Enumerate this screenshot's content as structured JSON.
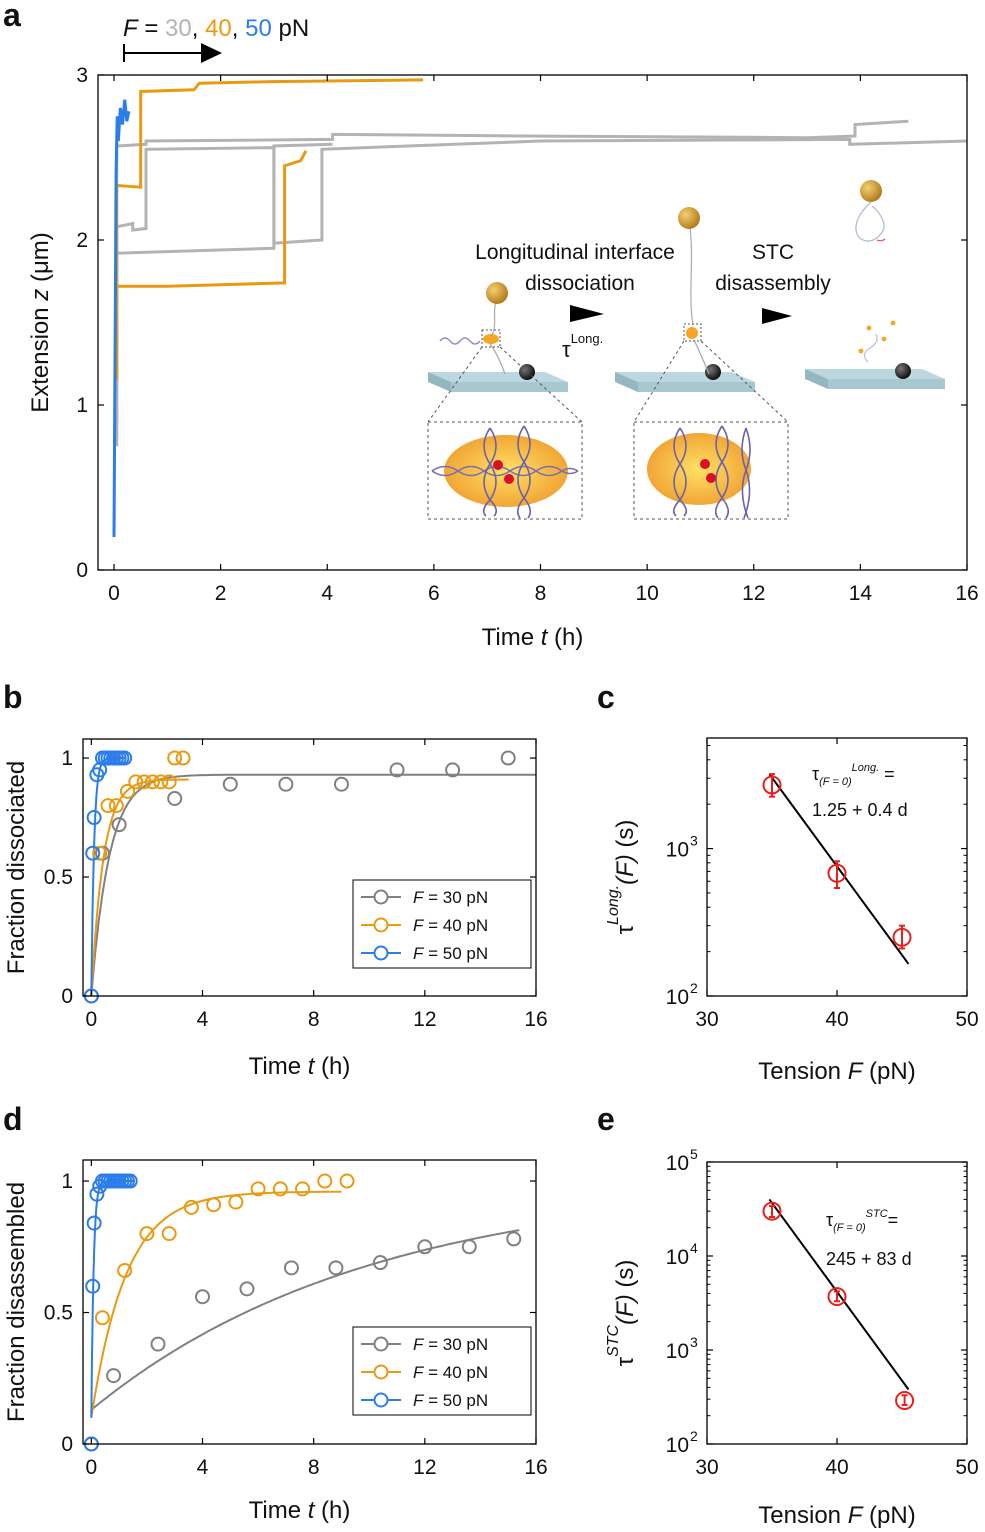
{
  "figure": {
    "panel_labels": [
      "a",
      "b",
      "c",
      "d",
      "e"
    ],
    "colors": {
      "f30": "#b3b3b3",
      "f40": "#e89a10",
      "f50": "#2b7de9",
      "fit30": "#808080",
      "marker": "#e8201c",
      "line": "#000000"
    }
  },
  "panel_a": {
    "force_label": {
      "F": "F",
      "eq": " = ",
      "v30": "30",
      "sep1": ", ",
      "v40": "40",
      "sep2": ", ",
      "v50": "50",
      "unit": " pN"
    },
    "inset": {
      "step1_label_line1": "Longitudinal interface",
      "step1_label_line2": "dissociation",
      "tau_symbol": "τ",
      "tau_sup": "Long.",
      "step2_label_line1": "STC",
      "step2_label_line2": "disassembly"
    }
  },
  "panel_c": {
    "annotation": {
      "tau": "τ",
      "sub": "(F = 0)",
      "sup": "Long.",
      "eq": " =",
      "value": "1.25 + 0.4 d"
    }
  },
  "panel_e": {
    "annotation": {
      "tau": "τ",
      "sub": "(F = 0)",
      "sup": "STC",
      "eq": "=",
      "value": "245 + 83 d"
    }
  },
  "chart_data": [
    {
      "id": "a",
      "type": "line",
      "title": "",
      "xlabel": "Time t (h)",
      "ylabel": "Extension z (μm)",
      "xlim": [
        -0.3,
        16
      ],
      "ylim": [
        0,
        3
      ],
      "xticks": [
        0,
        2,
        4,
        6,
        8,
        10,
        12,
        14,
        16
      ],
      "yticks": [
        0,
        1,
        2,
        3
      ],
      "series": [
        {
          "name": "F = 30 pN trace 1",
          "color": "f30",
          "x": [
            0.05,
            0.05,
            0.6,
            0.6,
            4.1,
            4.1,
            8.0,
            13.0,
            13.9,
            13.9,
            14.9
          ],
          "y": [
            0.8,
            2.57,
            2.58,
            2.6,
            2.61,
            2.64,
            2.63,
            2.62,
            2.63,
            2.7,
            2.72
          ]
        },
        {
          "name": "F = 30 pN trace 2",
          "color": "f30",
          "x": [
            0.05,
            0.05,
            0.35,
            0.35,
            0.6,
            0.6,
            3.0,
            3.0,
            3.9,
            3.9,
            8.0,
            13.8,
            13.8,
            16.0
          ],
          "y": [
            0.9,
            2.08,
            2.1,
            2.06,
            2.07,
            2.55,
            2.56,
            1.98,
            2.0,
            2.55,
            2.6,
            2.61,
            2.58,
            2.6
          ]
        },
        {
          "name": "F = 30 pN trace 3",
          "color": "f30",
          "x": [
            0.05,
            0.05,
            3.0,
            3.0,
            4.1
          ],
          "y": [
            0.75,
            1.92,
            1.95,
            2.57,
            2.58
          ]
        },
        {
          "name": "F = 40 pN trace 1",
          "color": "f40",
          "x": [
            0.05,
            0.05,
            0.5,
            0.5,
            1.5,
            1.6,
            3.0,
            5.8
          ],
          "y": [
            1.2,
            2.33,
            2.32,
            2.9,
            2.91,
            2.95,
            2.96,
            2.97
          ]
        },
        {
          "name": "F = 40 pN trace 2",
          "color": "f40",
          "x": [
            0.05,
            0.05,
            1.0,
            3.2,
            3.2,
            3.5,
            3.6
          ],
          "y": [
            1.15,
            1.72,
            1.72,
            1.74,
            2.45,
            2.48,
            2.54
          ]
        },
        {
          "name": "F = 50 pN trace 1",
          "color": "f50",
          "x": [
            0.0,
            0.02,
            0.04,
            0.06,
            0.08,
            0.12,
            0.16,
            0.2,
            0.24,
            0.28
          ],
          "y": [
            0.2,
            1.35,
            2.4,
            2.75,
            2.6,
            2.8,
            2.7,
            2.85,
            2.72,
            2.78
          ]
        }
      ]
    },
    {
      "id": "b",
      "type": "scatter",
      "xlabel": "Time t (h)",
      "ylabel": "Fraction dissociated",
      "xlim": [
        -0.3,
        16
      ],
      "ylim": [
        0,
        1.08
      ],
      "xticks": [
        0,
        4,
        8,
        12,
        16
      ],
      "yticks": [
        0,
        0.5,
        1
      ],
      "ytick_labels": [
        "0",
        "0.5",
        "1"
      ],
      "legend": "bottom-right",
      "series": [
        {
          "name": "F = 30 pN",
          "label_f": "F",
          "label_v": " = 30 pN",
          "color": "f30",
          "points": {
            "x": [
              0,
              0.4,
              1.0,
              3.0,
              5.0,
              7.0,
              9.0,
              11.0,
              13.0,
              15.0
            ],
            "y": [
              0,
              0.6,
              0.72,
              0.83,
              0.89,
              0.89,
              0.89,
              0.95,
              0.95,
              1.0
            ]
          },
          "fit": {
            "asymptote": 0.93,
            "rate": 1.55,
            "xmax": 16
          }
        },
        {
          "name": "F = 40 pN",
          "label_f": "F",
          "label_v": " = 40 pN",
          "color": "f40",
          "points": {
            "x": [
              0,
              0.3,
              0.6,
              0.9,
              1.3,
              1.6,
              1.9,
              2.2,
              2.5,
              2.8,
              3.0,
              3.3
            ],
            "y": [
              0,
              0.6,
              0.8,
              0.8,
              0.86,
              0.9,
              0.9,
              0.9,
              0.9,
              0.9,
              1.0,
              1.0
            ]
          },
          "fit": {
            "asymptote": 0.91,
            "rate": 2.3,
            "xmax": 3.5
          }
        },
        {
          "name": "F = 50 pN",
          "label_f": "F",
          "label_v": " = 50 pN",
          "color": "f50",
          "points": {
            "x": [
              0,
              0.05,
              0.1,
              0.2,
              0.3,
              0.4,
              0.5,
              0.6,
              0.7,
              0.8,
              0.9,
              1.0,
              1.1,
              1.2
            ],
            "y": [
              0,
              0.6,
              0.75,
              0.93,
              0.95,
              1.0,
              1.0,
              1.0,
              1.0,
              1.0,
              1.0,
              1.0,
              1.0,
              1.0
            ]
          },
          "fit": {
            "asymptote": 1.0,
            "rate": 10.0,
            "xmax": 1.2
          }
        }
      ]
    },
    {
      "id": "c",
      "type": "scatter",
      "xlabel": "Tension F (pN)",
      "ylabel": "τ Long. (F) (s)",
      "xlim": [
        30,
        50
      ],
      "ylim_log10": [
        2,
        3.75
      ],
      "yscale": "log",
      "xticks": [
        30,
        40,
        50
      ],
      "yticks_exp": [
        2,
        3
      ],
      "points": {
        "x": [
          35,
          40,
          45
        ],
        "y": [
          2700,
          680,
          250
        ],
        "yerr_low": [
          2250,
          540,
          210
        ],
        "yerr_high": [
          3200,
          820,
          300
        ]
      },
      "fit": {
        "x": [
          34.8,
          45.5
        ],
        "y": [
          3200,
          165
        ]
      }
    },
    {
      "id": "d",
      "type": "scatter",
      "xlabel": "Time t (h)",
      "ylabel": "Fraction disassembled",
      "xlim": [
        -0.3,
        16
      ],
      "ylim": [
        0,
        1.08
      ],
      "xticks": [
        0,
        4,
        8,
        12,
        16
      ],
      "yticks": [
        0,
        0.5,
        1
      ],
      "ytick_labels": [
        "0",
        "0.5",
        "1"
      ],
      "legend": "bottom-right",
      "series": [
        {
          "name": "F = 30 pN",
          "label_f": "F",
          "label_v": " = 30 pN",
          "color": "f30",
          "points": {
            "x": [
              0,
              0.8,
              2.4,
              4.0,
              5.6,
              7.2,
              8.8,
              10.4,
              12.0,
              13.6,
              15.2
            ],
            "y": [
              0,
              0.26,
              0.38,
              0.56,
              0.59,
              0.67,
              0.67,
              0.69,
              0.75,
              0.75,
              0.78
            ]
          },
          "fit": {
            "y0": 0.13,
            "asymptote": 1.0,
            "rate": 0.1,
            "xmax": 15.4
          }
        },
        {
          "name": "F = 40 pN",
          "label_f": "F",
          "label_v": " = 40 pN",
          "color": "f40",
          "points": {
            "x": [
              0,
              0.4,
              1.2,
              2.0,
              2.8,
              3.6,
              4.4,
              5.2,
              6.0,
              6.8,
              7.6,
              8.4,
              9.2
            ],
            "y": [
              0,
              0.48,
              0.66,
              0.8,
              0.8,
              0.9,
              0.91,
              0.92,
              0.97,
              0.97,
              0.97,
              1.0,
              1.0
            ]
          },
          "fit": {
            "y0": 0.1,
            "asymptote": 0.96,
            "rate": 0.8,
            "xmax": 9.0
          }
        },
        {
          "name": "F = 50 pN",
          "label_f": "F",
          "label_v": " = 50 pN",
          "color": "f50",
          "points": {
            "x": [
              0,
              0.05,
              0.1,
              0.2,
              0.3,
              0.4,
              0.5,
              0.6,
              0.7,
              0.8,
              0.9,
              1.0,
              1.1,
              1.2,
              1.3,
              1.4
            ],
            "y": [
              0,
              0.6,
              0.84,
              0.95,
              0.98,
              1.0,
              1.0,
              1.0,
              1.0,
              1.0,
              1.0,
              1.0,
              1.0,
              1.0,
              1.0,
              1.0
            ]
          },
          "fit": {
            "y0": 0.1,
            "asymptote": 1.0,
            "rate": 12.0,
            "xmax": 1.5
          }
        }
      ]
    },
    {
      "id": "e",
      "type": "scatter",
      "xlabel": "Tension F (pN)",
      "ylabel": "τ STC (F) (s)",
      "xlim": [
        30,
        50
      ],
      "ylim_log10": [
        2,
        5
      ],
      "yscale": "log",
      "xticks": [
        30,
        40,
        50
      ],
      "yticks_exp": [
        2,
        3,
        4,
        5
      ],
      "points": {
        "x": [
          35,
          40,
          45.2
        ],
        "y": [
          30000,
          3700,
          290
        ],
        "yerr_low": [
          26000,
          3300,
          260
        ],
        "yerr_high": [
          34000,
          4200,
          330
        ]
      },
      "fit": {
        "x": [
          34.8,
          45.5
        ],
        "y": [
          40000,
          380
        ]
      }
    }
  ]
}
